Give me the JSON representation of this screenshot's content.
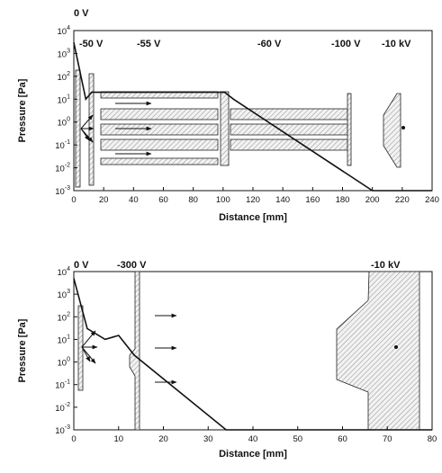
{
  "plots": [
    {
      "id": "top",
      "xlabel": "Distance [mm]",
      "ylabel": "Pressure [Pa]",
      "xlim": [
        0,
        240
      ],
      "x_ticks": [
        "0",
        "20",
        "40",
        "60",
        "80",
        "100",
        "120",
        "140",
        "160",
        "180",
        "200",
        "220",
        "240"
      ],
      "y_ticks": [
        "10^-3",
        "10^-2",
        "10^-1",
        "10^0",
        "10^1",
        "10^2",
        "10^3",
        "10^4"
      ],
      "y_exponents": [
        -3,
        -2,
        -1,
        0,
        1,
        2,
        3,
        4
      ],
      "voltages": [
        "0 V",
        "-50 V",
        "-55 V",
        "-60 V",
        "-100 V",
        "-10 kV"
      ],
      "pressure_curve_x": [
        0,
        8,
        12,
        15,
        101,
        107,
        200,
        240
      ],
      "pressure_curve_y": [
        3000,
        10,
        20,
        20,
        20,
        10,
        0.001,
        0.001
      ]
    },
    {
      "id": "bottom",
      "xlabel": "Distance [mm]",
      "ylabel": "Pressure [Pa]",
      "xlim": [
        0,
        80
      ],
      "x_ticks": [
        "0",
        "10",
        "20",
        "30",
        "40",
        "50",
        "60",
        "70",
        "80"
      ],
      "y_ticks": [
        "10^-3",
        "10^-2",
        "10^-1",
        "10^0",
        "10^1",
        "10^2",
        "10^3",
        "10^4"
      ],
      "y_exponents": [
        -3,
        -2,
        -1,
        0,
        1,
        2,
        3,
        4
      ],
      "voltages": [
        "0 V",
        "-300 V",
        "-10 kV"
      ],
      "pressure_curve_x": [
        0,
        3,
        7,
        10,
        13.5,
        34,
        80
      ],
      "pressure_curve_y": [
        5000,
        30,
        10,
        15,
        2,
        0.001,
        0.001
      ]
    }
  ]
}
